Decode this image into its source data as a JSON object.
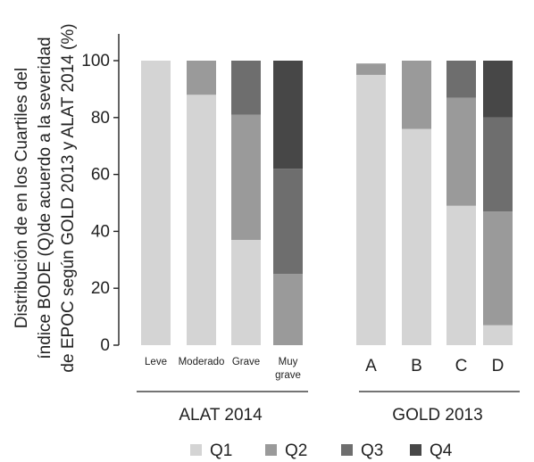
{
  "chart_data": {
    "type": "bar",
    "stacked": true,
    "ylabel_lines": [
      "Distribución de en los Cuartiles del",
      "índice BODE (Q)de acuerdo a la severidad",
      "de EPOC según GOLD 2013 y ALAT 2014 (%)"
    ],
    "ylim": [
      0,
      100
    ],
    "yticks": [
      "0",
      "20",
      "40",
      "60",
      "80",
      "100"
    ],
    "groups": [
      {
        "label": "ALAT 2014",
        "categories": [
          "Leve",
          "Moderado",
          "Grave",
          "Muy grave"
        ]
      },
      {
        "label": "GOLD 2013",
        "categories": [
          "A",
          "B",
          "C",
          "D"
        ]
      }
    ],
    "categories": [
      "Leve",
      "Moderado",
      "Grave",
      "Muy grave",
      "A",
      "B",
      "C",
      "D"
    ],
    "series": [
      {
        "name": "Q1",
        "color": "#d4d4d4",
        "values": [
          100,
          88,
          37,
          0,
          95,
          76,
          49,
          7
        ]
      },
      {
        "name": "Q2",
        "color": "#9a9a9a",
        "values": [
          0,
          12,
          44,
          25,
          4,
          24,
          38,
          40
        ]
      },
      {
        "name": "Q3",
        "color": "#6e6e6e",
        "values": [
          0,
          0,
          19,
          37,
          0,
          0,
          13,
          33
        ]
      },
      {
        "name": "Q4",
        "color": "#474747",
        "values": [
          0,
          0,
          0,
          38,
          0,
          0,
          0,
          20
        ]
      }
    ],
    "grid": false,
    "legend_position": "bottom"
  }
}
